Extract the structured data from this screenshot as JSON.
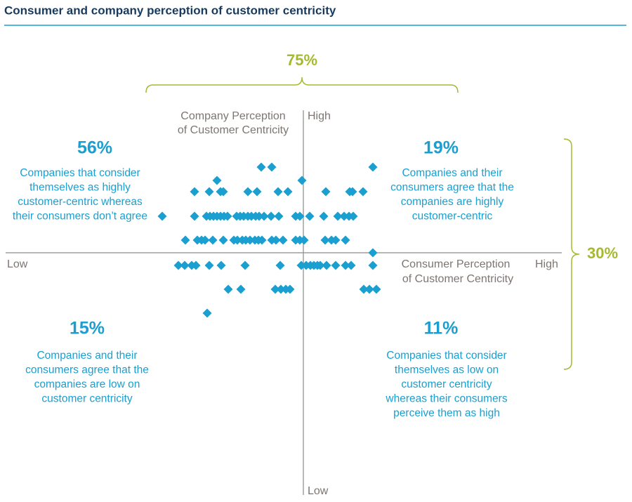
{
  "chart_data": {
    "type": "scatter",
    "title": "Consumer and company perception of customer centricity",
    "x_axis": {
      "label": [
        "Consumer Perception",
        "of Customer Centricity"
      ],
      "low": "Low",
      "high": "High"
    },
    "y_axis": {
      "label": [
        "Company Perception",
        "of Customer Centricity"
      ],
      "low": "Low",
      "high": "High"
    },
    "xlim": [
      -42.4,
      36.8
    ],
    "ylim": [
      -34.5,
      20.3
    ],
    "series": [
      {
        "color": "#1a9fd0",
        "x": [
          -6,
          -4.5,
          9.9,
          -12.3,
          -0.2,
          -15.5,
          -13.4,
          -11.8,
          -11.4,
          -7.9,
          -6.6,
          -3.6,
          -2.2,
          3.2,
          6.6,
          7,
          8.5,
          -20.1,
          -15.5,
          -13.8,
          -13.3,
          -12.8,
          -12.3,
          -11.8,
          -11.3,
          -10.8,
          -9.5,
          -9,
          -8.5,
          -7.9,
          -7.4,
          -6.8,
          -6.3,
          -5.6,
          -4.6,
          -3.5,
          -1.1,
          -0.5,
          0.9,
          2.9,
          4.9,
          5.8,
          6.5,
          7.1,
          -16.8,
          -15.1,
          -14.5,
          -14,
          -12.9,
          -11.4,
          -9.9,
          -9.4,
          -8.7,
          -8.2,
          -7.6,
          -6.9,
          -6.4,
          -5.9,
          -4.5,
          -3.9,
          -2.9,
          -1.1,
          -0.5,
          0.1,
          3.1,
          4,
          4.6,
          6,
          9.9,
          -17.8,
          -16.9,
          -15.9,
          -15.3,
          -13.4,
          -11.7,
          -8.3,
          -3.3,
          -0.3,
          0.4,
          1,
          1.5,
          2,
          2.4,
          3.3,
          4.6,
          6,
          6.8,
          9.9,
          -10.7,
          -8.9,
          -4,
          -3.2,
          -2.5,
          -1.9,
          8.6,
          9.4,
          10.4,
          -13.7
        ],
        "values": [
          12.2,
          12.2,
          12.2,
          10.3,
          10.3,
          8.7,
          8.7,
          8.7,
          8.7,
          8.7,
          8.7,
          8.7,
          8.7,
          8.7,
          8.7,
          8.7,
          8.7,
          5.2,
          5.2,
          5.2,
          5.2,
          5.2,
          5.2,
          5.2,
          5.2,
          5.2,
          5.2,
          5.2,
          5.2,
          5.2,
          5.2,
          5.2,
          5.2,
          5.2,
          5.2,
          5.2,
          5.2,
          5.2,
          5.2,
          5.2,
          5.2,
          5.2,
          5.2,
          5.2,
          1.8,
          1.8,
          1.8,
          1.8,
          1.8,
          1.8,
          1.8,
          1.8,
          1.8,
          1.8,
          1.8,
          1.8,
          1.8,
          1.8,
          1.8,
          1.8,
          1.8,
          1.8,
          1.8,
          1.8,
          1.8,
          1.8,
          1.8,
          1.8,
          0,
          -1.8,
          -1.8,
          -1.8,
          -1.8,
          -1.8,
          -1.8,
          -1.8,
          -1.8,
          -1.8,
          -1.8,
          -1.8,
          -1.8,
          -1.8,
          -1.8,
          -1.8,
          -1.8,
          -1.8,
          -1.8,
          -1.8,
          -5.2,
          -5.2,
          -5.2,
          -5.2,
          -5.2,
          -5.2,
          -5.2,
          -5.2,
          -5.2,
          -8.6
        ]
      }
    ],
    "annotations": [
      {
        "label": "56%",
        "text": [
          "Companies that consider",
          "themselves as highly",
          "customer-centric whereas",
          "their consumers don’t agree"
        ]
      },
      {
        "label": "19%",
        "text": [
          "Companies and their",
          "consumers agree that the",
          "companies are highly",
          "customer-centric"
        ]
      },
      {
        "label": "15%",
        "text": [
          "Companies and their",
          "consumers agree that the",
          "companies are low on",
          "customer centricity"
        ]
      },
      {
        "label": "11%",
        "text": [
          "Companies that consider",
          "themselves as low on",
          "customer centricity",
          "whereas their consumers",
          "perceive them as high"
        ]
      }
    ],
    "brackets": [
      "75%",
      "30%"
    ]
  }
}
